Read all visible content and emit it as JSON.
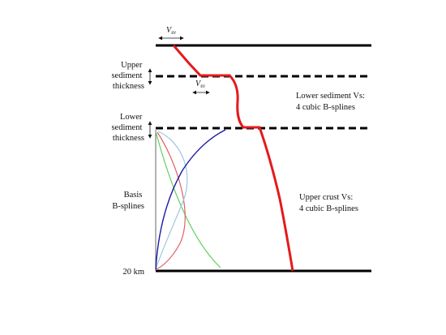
{
  "labels": {
    "upper_sediment_thickness": [
      "Upper",
      "sediment",
      "thickness"
    ],
    "lower_sediment_thickness": [
      "Lower",
      "sediment",
      "thickness"
    ],
    "basis_bsplines": [
      "Basis",
      "B-splines"
    ],
    "depth_20km": "20 km",
    "vsv_top": {
      "main": "V",
      "sub": "sv"
    },
    "vsv_mid": {
      "main": "V",
      "sub": "sv"
    },
    "lower_sediment_vs": [
      "Lower sediment Vs:",
      "4 cubic B-splines"
    ],
    "upper_crust_vs": [
      "Upper crust Vs:",
      "4 cubic B-splines"
    ]
  },
  "colors": {
    "boundary": "#000000",
    "velocity_profile": "#e41a1c",
    "spline_dark_blue": "#1a1aa6",
    "spline_light_blue": "#9ec6e0",
    "spline_red": "#e06060",
    "spline_green": "#5fcf5f"
  }
}
